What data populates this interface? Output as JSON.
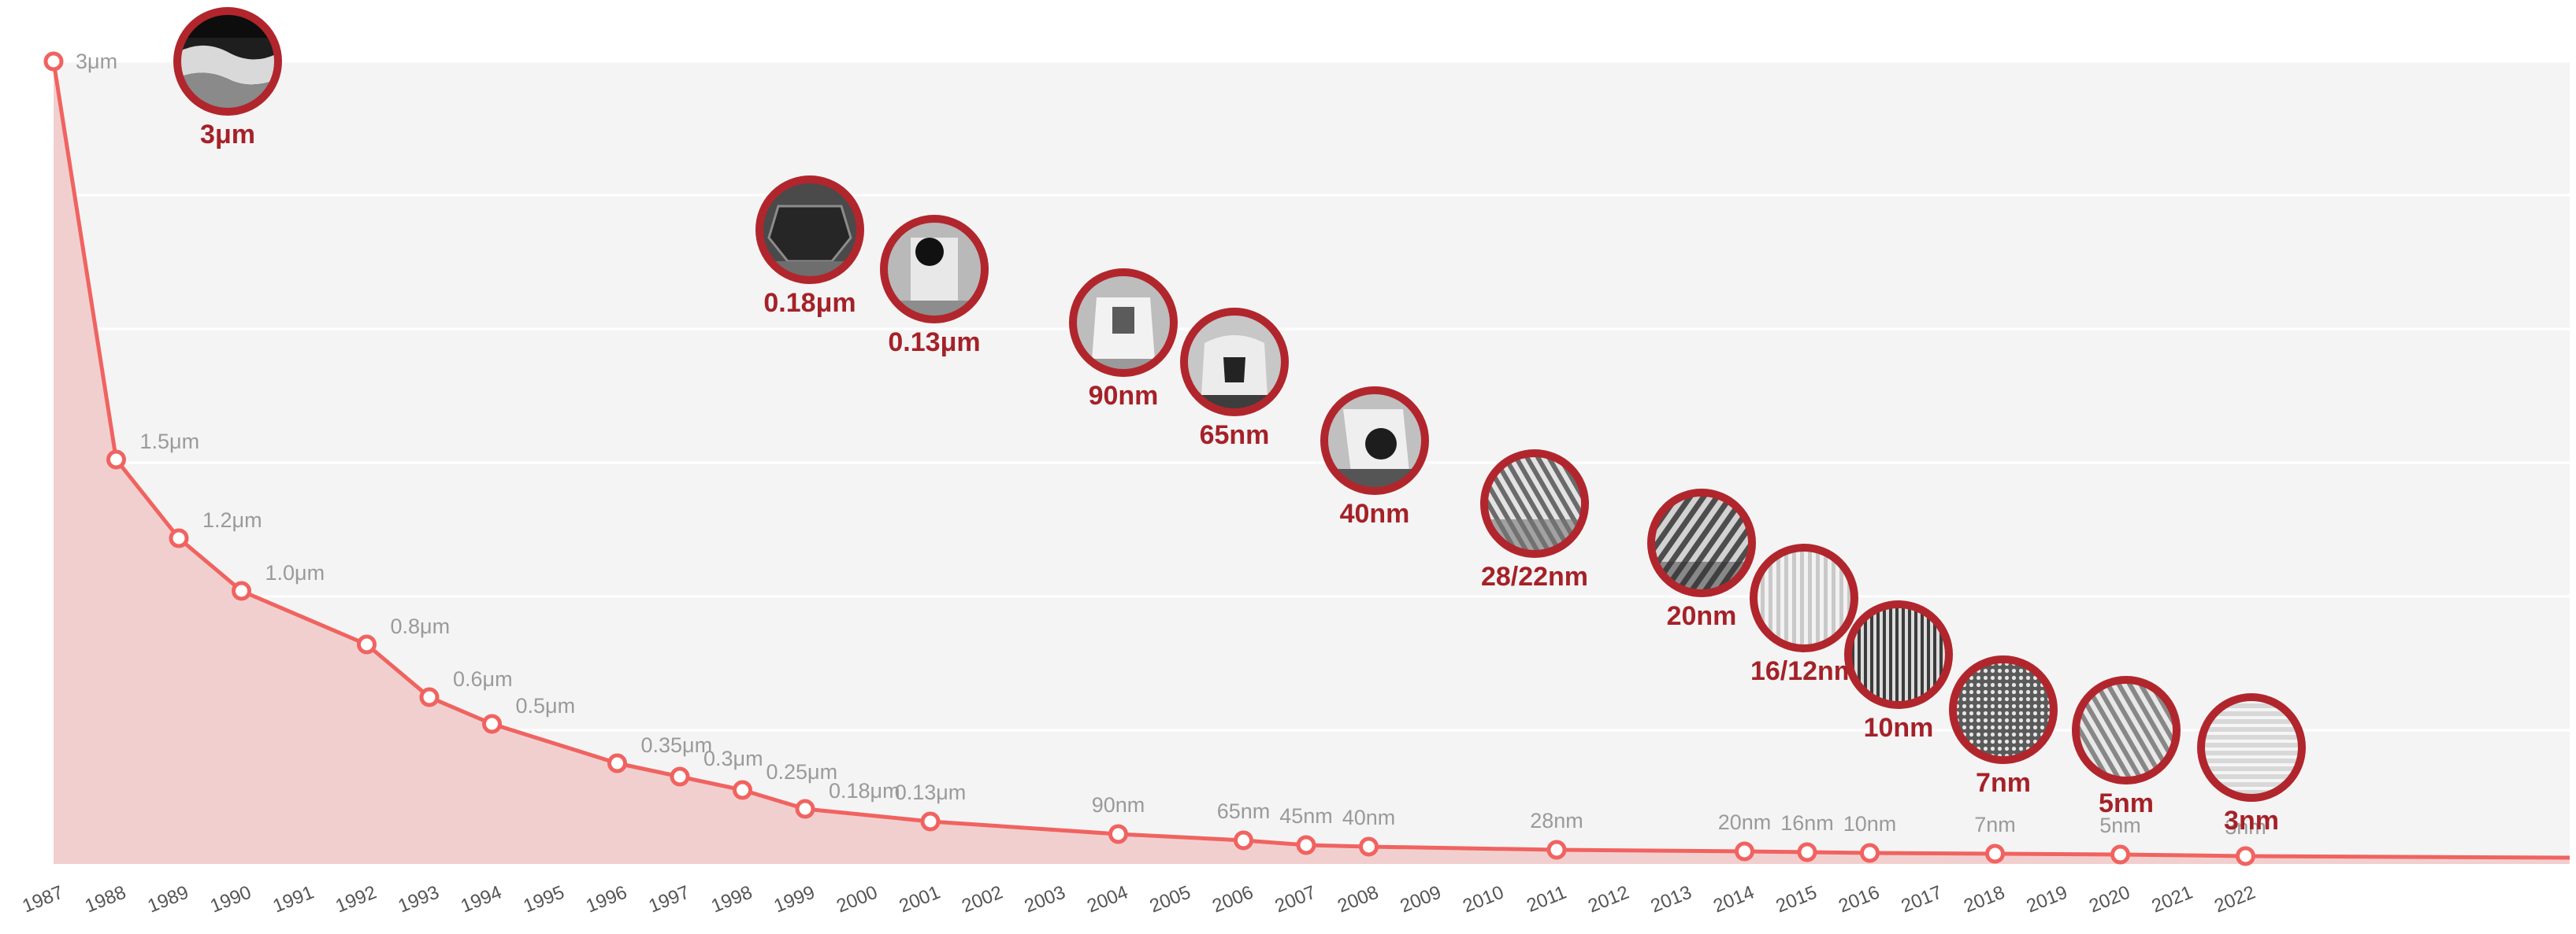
{
  "colors": {
    "line": "#f06360",
    "area": "#f2cfcf",
    "plot_bg": "#f4f4f4",
    "grid": "#ffffff",
    "badge_ring": "#b1262c",
    "badge_label": "#a52128",
    "point_label": "#9a9a9a",
    "year_label": "#555555"
  },
  "chart_data": {
    "type": "area",
    "title": "",
    "xlabel": "",
    "ylabel": "",
    "x_ticks": [
      "1987",
      "1988",
      "1989",
      "1990",
      "1991",
      "1992",
      "1993",
      "1994",
      "1995",
      "1996",
      "1997",
      "1998",
      "1999",
      "2000",
      "2001",
      "2002",
      "2003",
      "2004",
      "2005",
      "2006",
      "2007",
      "2008",
      "2009",
      "2010",
      "2011",
      "2012",
      "2013",
      "2014",
      "2015",
      "2016",
      "2017",
      "2018",
      "2019",
      "2020",
      "2021",
      "2022"
    ],
    "grid": true,
    "series": [
      {
        "points": [
          {
            "year": 1987,
            "value_um": 3.0,
            "label": "3μm"
          },
          {
            "year": 1988,
            "value_um": 1.5,
            "label": "1.5μm"
          },
          {
            "year": 1989,
            "value_um": 1.2,
            "label": "1.2μm"
          },
          {
            "year": 1990,
            "value_um": 1.0,
            "label": "1.0μm"
          },
          {
            "year": 1992,
            "value_um": 0.8,
            "label": "0.8μm"
          },
          {
            "year": 1993,
            "value_um": 0.6,
            "label": "0.6μm"
          },
          {
            "year": 1994,
            "value_um": 0.5,
            "label": "0.5μm"
          },
          {
            "year": 1996,
            "value_um": 0.35,
            "label": "0.35μm"
          },
          {
            "year": 1997,
            "value_um": 0.3,
            "label": "0.3μm"
          },
          {
            "year": 1998,
            "value_um": 0.25,
            "label": "0.25μm"
          },
          {
            "year": 1999,
            "value_um": 0.18,
            "label": "0.18μm"
          },
          {
            "year": 2001,
            "value_um": 0.13,
            "label": "0.13μm"
          },
          {
            "year": 2004,
            "value_um": 0.09,
            "label": "90nm"
          },
          {
            "year": 2006,
            "value_um": 0.065,
            "label": "65nm"
          },
          {
            "year": 2007,
            "value_um": 0.045,
            "label": "45nm"
          },
          {
            "year": 2008,
            "value_um": 0.04,
            "label": "40nm"
          },
          {
            "year": 2011,
            "value_um": 0.028,
            "label": "28nm"
          },
          {
            "year": 2014,
            "value_um": 0.02,
            "label": "20nm"
          },
          {
            "year": 2015,
            "value_um": 0.016,
            "label": "16nm"
          },
          {
            "year": 2016,
            "value_um": 0.01,
            "label": "10nm"
          },
          {
            "year": 2018,
            "value_um": 0.007,
            "label": "7nm"
          },
          {
            "year": 2020,
            "value_um": 0.005,
            "label": "5nm"
          },
          {
            "year": 2022,
            "value_um": 0.003,
            "label": "3nm"
          }
        ]
      }
    ],
    "badges": [
      {
        "label": "3μm",
        "thumb": "3um"
      },
      {
        "label": "0.18μm",
        "thumb": "018um"
      },
      {
        "label": "0.13μm",
        "thumb": "013um"
      },
      {
        "label": "90nm",
        "thumb": "90nm"
      },
      {
        "label": "65nm",
        "thumb": "65nm"
      },
      {
        "label": "40nm",
        "thumb": "40nm"
      },
      {
        "label": "28/22nm",
        "thumb": "28nm"
      },
      {
        "label": "20nm",
        "thumb": "20nm"
      },
      {
        "label": "16/12nm",
        "thumb": "16nm"
      },
      {
        "label": "10nm",
        "thumb": "10nm"
      },
      {
        "label": "7nm",
        "thumb": "7nm"
      },
      {
        "label": "5nm",
        "thumb": "5nm"
      },
      {
        "label": "3nm",
        "thumb": "3nm"
      }
    ]
  }
}
